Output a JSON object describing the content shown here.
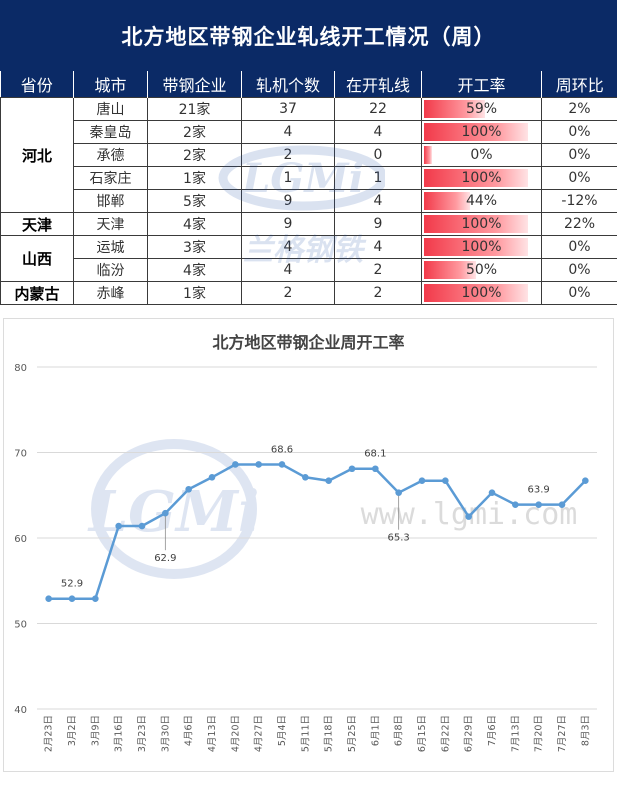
{
  "table": {
    "title": "北方地区带钢企业轧线开工情况（周）",
    "headers": [
      "省份",
      "城市",
      "带钢企业",
      "轧机个数",
      "在开轧线",
      "开工率",
      "周环比"
    ],
    "provinces": [
      "河北",
      "天津",
      "山西",
      "内蒙古"
    ],
    "rows": [
      {
        "city": "唐山",
        "companies": "21家",
        "mills": "37",
        "running": "22",
        "rate": "59%",
        "rate_value": 0.59,
        "wow": "2%"
      },
      {
        "city": "秦皇岛",
        "companies": "2家",
        "mills": "4",
        "running": "4",
        "rate": "100%",
        "rate_value": 1.0,
        "wow": "0%"
      },
      {
        "city": "承德",
        "companies": "2家",
        "mills": "2",
        "running": "0",
        "rate": "0%",
        "rate_value": 0.0,
        "wow": "0%"
      },
      {
        "city": "石家庄",
        "companies": "1家",
        "mills": "1",
        "running": "1",
        "rate": "100%",
        "rate_value": 1.0,
        "wow": "0%"
      },
      {
        "city": "邯郸",
        "companies": "5家",
        "mills": "9",
        "running": "4",
        "rate": "44%",
        "rate_value": 0.44,
        "wow": "-12%"
      },
      {
        "city": "天津",
        "companies": "4家",
        "mills": "9",
        "running": "9",
        "rate": "100%",
        "rate_value": 1.0,
        "wow": "22%"
      },
      {
        "city": "运城",
        "companies": "3家",
        "mills": "4",
        "running": "4",
        "rate": "100%",
        "rate_value": 1.0,
        "wow": "0%"
      },
      {
        "city": "临汾",
        "companies": "4家",
        "mills": "4",
        "running": "2",
        "rate": "50%",
        "rate_value": 0.5,
        "wow": "0%"
      },
      {
        "city": "赤峰",
        "companies": "1家",
        "mills": "2",
        "running": "2",
        "rate": "100%",
        "rate_value": 1.0,
        "wow": "0%"
      }
    ]
  },
  "watermark": {
    "logo_text": "LGMi",
    "chinese_text": "兰格钢铁",
    "url_text": "www.lgmi.com"
  },
  "chart_data": {
    "type": "line",
    "title": "北方地区带钢企业周开工率",
    "xlabel": "",
    "ylabel": "",
    "ylim": [
      40,
      80
    ],
    "yticks": [
      40,
      50,
      60,
      70,
      80
    ],
    "grid": true,
    "categories": [
      "2月23日",
      "3月2日",
      "3月9日",
      "3月16日",
      "3月23日",
      "3月30日",
      "4月6日",
      "4月13日",
      "4月20日",
      "4月27日",
      "5月4日",
      "5月11日",
      "5月18日",
      "5月25日",
      "6月1日",
      "6月8日",
      "6月15日",
      "6月22日",
      "6月29日",
      "7月6日",
      "7月13日",
      "7月20日",
      "7月27日",
      "8月3日"
    ],
    "series": [
      {
        "values": [
          52.9,
          52.9,
          52.9,
          61.4,
          61.4,
          62.9,
          65.7,
          67.1,
          68.6,
          68.6,
          68.6,
          67.1,
          66.7,
          68.1,
          68.1,
          65.3,
          66.7,
          66.7,
          62.5,
          65.3,
          63.9,
          63.9,
          63.9,
          66.7
        ],
        "color": "#5b9bd5"
      }
    ],
    "data_labels": [
      {
        "index": 1,
        "text": "52.9"
      },
      {
        "index": 5,
        "text": "62.9"
      },
      {
        "index": 10,
        "text": "68.6"
      },
      {
        "index": 14,
        "text": "68.1"
      },
      {
        "index": 15,
        "text": "65.3"
      },
      {
        "index": 21,
        "text": "63.9"
      }
    ]
  }
}
